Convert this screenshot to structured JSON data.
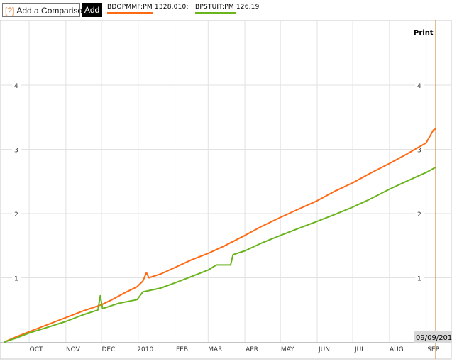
{
  "toolbar": {
    "compare_icon": "[?]",
    "compare_label": "Add a Comparison",
    "add_label": "Add"
  },
  "legend": [
    {
      "label": "BDOPMMF:PM  1328.010:",
      "color": "#ff6a13"
    },
    {
      "label": "BPSTUIT:PM  126.19",
      "color": "#6ab41e"
    }
  ],
  "print_label": "Print",
  "date_readout": "09/09/201",
  "chart_data": {
    "type": "line",
    "x_ticks": [
      "OCT",
      "NOV",
      "DEC",
      "2010",
      "FEB",
      "MAR",
      "APR",
      "MAY",
      "JUN",
      "JUL",
      "AUG",
      "SEP"
    ],
    "y_ticks": [
      1,
      2,
      3,
      4
    ],
    "ylim": [
      0,
      5.1
    ],
    "series": [
      {
        "name": "BDOPMMF:PM",
        "color": "#ff6a13",
        "points": [
          [
            "2009-09-10",
            0.0
          ],
          [
            "2009-09-20",
            0.08
          ],
          [
            "2009-10-01",
            0.16
          ],
          [
            "2009-10-15",
            0.26
          ],
          [
            "2009-11-01",
            0.38
          ],
          [
            "2009-11-15",
            0.48
          ],
          [
            "2009-12-01",
            0.58
          ],
          [
            "2009-12-10",
            0.66
          ],
          [
            "2009-12-20",
            0.76
          ],
          [
            "2009-12-31",
            0.86
          ],
          [
            "2010-01-05",
            0.95
          ],
          [
            "2010-01-08",
            1.08
          ],
          [
            "2010-01-10",
            1.0
          ],
          [
            "2010-01-20",
            1.06
          ],
          [
            "2010-02-01",
            1.16
          ],
          [
            "2010-02-15",
            1.28
          ],
          [
            "2010-03-01",
            1.38
          ],
          [
            "2010-03-15",
            1.5
          ],
          [
            "2010-04-01",
            1.66
          ],
          [
            "2010-04-15",
            1.8
          ],
          [
            "2010-05-01",
            1.94
          ],
          [
            "2010-05-15",
            2.06
          ],
          [
            "2010-06-01",
            2.2
          ],
          [
            "2010-06-15",
            2.34
          ],
          [
            "2010-07-01",
            2.48
          ],
          [
            "2010-07-15",
            2.62
          ],
          [
            "2010-08-01",
            2.78
          ],
          [
            "2010-08-15",
            2.92
          ],
          [
            "2010-09-01",
            3.1
          ],
          [
            "2010-09-07",
            3.3
          ],
          [
            "2010-09-09",
            3.32
          ]
        ]
      },
      {
        "name": "BPSTUIT:PM",
        "color": "#6ab41e",
        "points": [
          [
            "2009-09-10",
            0.0
          ],
          [
            "2009-09-20",
            0.06
          ],
          [
            "2009-10-01",
            0.14
          ],
          [
            "2009-10-15",
            0.22
          ],
          [
            "2009-11-01",
            0.32
          ],
          [
            "2009-11-15",
            0.42
          ],
          [
            "2009-11-28",
            0.5
          ],
          [
            "2009-11-30",
            0.72
          ],
          [
            "2009-12-02",
            0.52
          ],
          [
            "2009-12-15",
            0.6
          ],
          [
            "2009-12-31",
            0.66
          ],
          [
            "2010-01-05",
            0.78
          ],
          [
            "2010-01-20",
            0.84
          ],
          [
            "2010-02-01",
            0.92
          ],
          [
            "2010-02-15",
            1.02
          ],
          [
            "2010-03-01",
            1.12
          ],
          [
            "2010-03-08",
            1.2
          ],
          [
            "2010-03-20",
            1.2
          ],
          [
            "2010-03-22",
            1.36
          ],
          [
            "2010-04-01",
            1.42
          ],
          [
            "2010-04-15",
            1.54
          ],
          [
            "2010-05-01",
            1.66
          ],
          [
            "2010-05-15",
            1.76
          ],
          [
            "2010-06-01",
            1.88
          ],
          [
            "2010-06-15",
            1.98
          ],
          [
            "2010-07-01",
            2.1
          ],
          [
            "2010-07-15",
            2.22
          ],
          [
            "2010-08-01",
            2.38
          ],
          [
            "2010-08-15",
            2.5
          ],
          [
            "2010-09-01",
            2.64
          ],
          [
            "2010-09-09",
            2.72
          ]
        ]
      }
    ]
  }
}
